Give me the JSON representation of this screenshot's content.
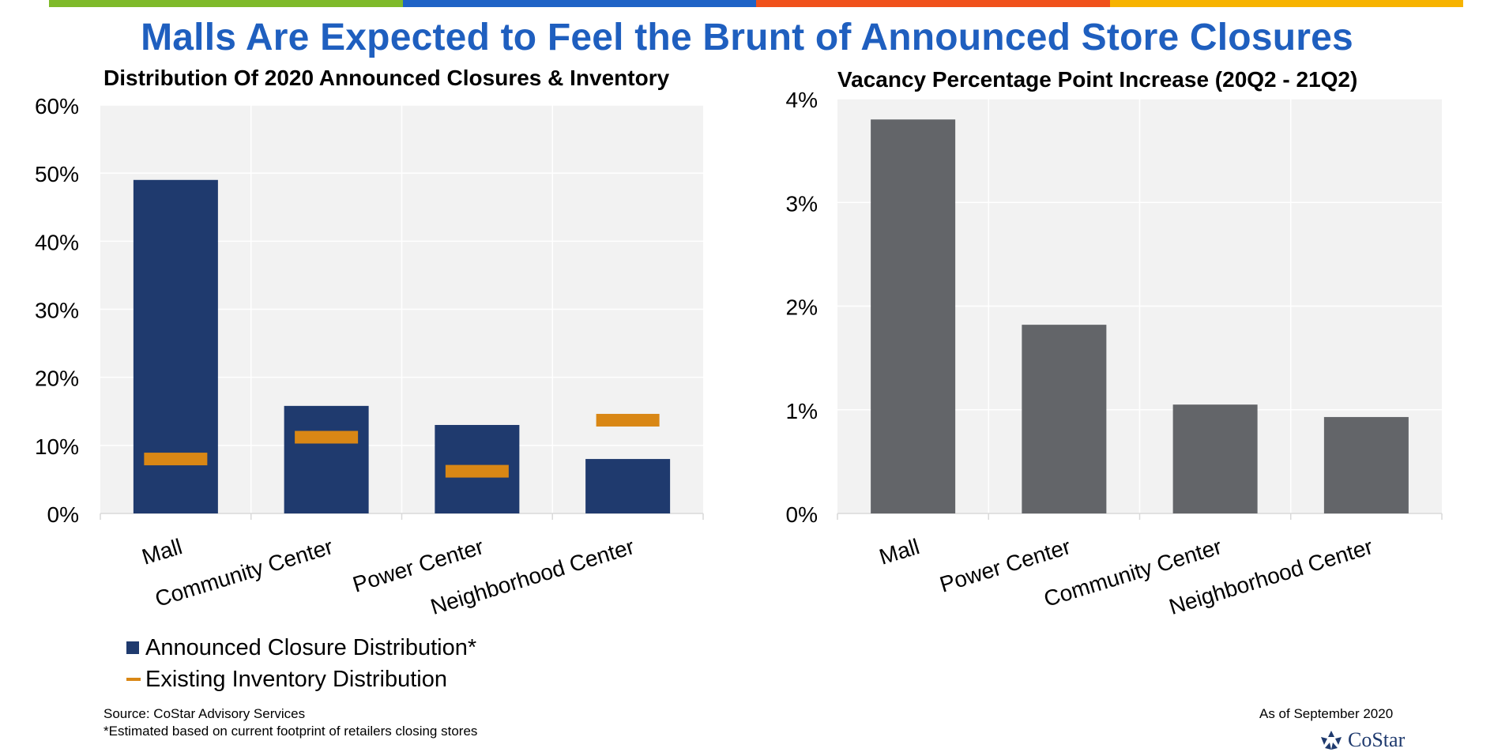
{
  "page": {
    "title": "Malls Are Expected to Feel the Brunt of Announced Store Closures",
    "top_bar_colors": [
      "#7fba2a",
      "#1f63c6",
      "#f0511b",
      "#f7b300"
    ],
    "footnotes": {
      "source": "Source: CoStar Advisory Services",
      "estimate": "*Estimated based on current footprint of retailers closing stores",
      "as_of": "As of September 2020"
    },
    "logo": {
      "name": "costar-logo",
      "text": "CoStar"
    }
  },
  "chart_data": [
    {
      "type": "bar",
      "title": "Distribution Of 2020 Announced Closures & Inventory",
      "categories": [
        "Mall",
        "Community Center",
        "Power Center",
        "Neighborhood Center"
      ],
      "yticks": [
        "0%",
        "10%",
        "20%",
        "30%",
        "40%",
        "50%",
        "60%"
      ],
      "ylim": [
        0,
        60
      ],
      "grid": true,
      "legend_position": "bottom-left",
      "series": [
        {
          "name": "Announced Closure Distribution*",
          "type": "bar",
          "color": "#1f3a6e",
          "values": [
            49,
            15.8,
            13,
            8
          ]
        },
        {
          "name": "Existing Inventory Distribution",
          "type": "marker",
          "color": "#d98715",
          "values": [
            8,
            11.2,
            6.2,
            13.7
          ]
        }
      ]
    },
    {
      "type": "bar",
      "title": "Vacancy Percentage Point Increase (20Q2 - 21Q2)",
      "categories": [
        "Mall",
        "Power Center",
        "Community Center",
        "Neighborhood Center"
      ],
      "yticks": [
        "0%",
        "1%",
        "2%",
        "3%",
        "4%"
      ],
      "ylim": [
        0,
        4
      ],
      "grid": true,
      "series": [
        {
          "color": "#636569",
          "values": [
            3.8,
            1.82,
            1.05,
            0.93
          ]
        }
      ]
    }
  ]
}
